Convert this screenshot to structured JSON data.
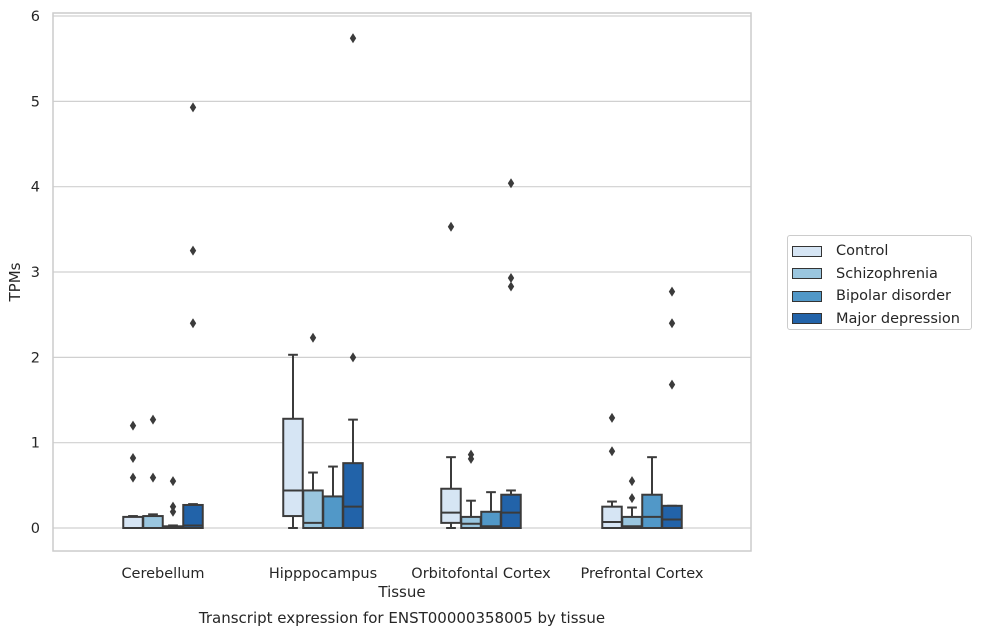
{
  "chart_data": {
    "type": "box",
    "caption": "Transcript expression for ENST00000358005 by tissue",
    "xlabel": "Tissue",
    "ylabel": "TPMs",
    "ylim": [
      -0.27,
      6.05
    ],
    "yticks": [
      0,
      1,
      2,
      3,
      4,
      5,
      6
    ],
    "categories": [
      "Cerebellum",
      "Hipppocampus",
      "Orbitofontal Cortex",
      "Prefrontal Cortex"
    ],
    "grid": "horizontal",
    "legend_position": "right",
    "series": [
      {
        "name": "Control",
        "color": "#d6e5f4",
        "boxes": [
          {
            "q1": 0.0,
            "median": 0.0,
            "q3": 0.13,
            "whisker_low": 0.0,
            "whisker_high": 0.14,
            "outliers": [
              1.2,
              0.82,
              0.59
            ]
          },
          {
            "q1": 0.14,
            "median": 0.44,
            "q3": 1.28,
            "whisker_low": 0.0,
            "whisker_high": 2.03,
            "outliers": []
          },
          {
            "q1": 0.06,
            "median": 0.18,
            "q3": 0.46,
            "whisker_low": 0.0,
            "whisker_high": 0.83,
            "outliers": [
              3.53
            ]
          },
          {
            "q1": 0.0,
            "median": 0.07,
            "q3": 0.25,
            "whisker_low": 0.0,
            "whisker_high": 0.31,
            "outliers": [
              1.29,
              0.9
            ]
          }
        ]
      },
      {
        "name": "Schizophrenia",
        "color": "#9ac6df",
        "boxes": [
          {
            "q1": 0.0,
            "median": 0.0,
            "q3": 0.14,
            "whisker_low": 0.0,
            "whisker_high": 0.16,
            "outliers": [
              1.27,
              0.59
            ]
          },
          {
            "q1": 0.0,
            "median": 0.06,
            "q3": 0.44,
            "whisker_low": 0.0,
            "whisker_high": 0.65,
            "outliers": [
              2.23
            ]
          },
          {
            "q1": 0.0,
            "median": 0.05,
            "q3": 0.13,
            "whisker_low": 0.0,
            "whisker_high": 0.32,
            "outliers": [
              0.86,
              0.81
            ]
          },
          {
            "q1": 0.0,
            "median": 0.02,
            "q3": 0.13,
            "whisker_low": 0.0,
            "whisker_high": 0.24,
            "outliers": [
              0.55,
              0.35
            ]
          }
        ]
      },
      {
        "name": "Bipolar disorder",
        "color": "#5198c8",
        "boxes": [
          {
            "q1": 0.0,
            "median": 0.0,
            "q3": 0.02,
            "whisker_low": 0.0,
            "whisker_high": 0.03,
            "outliers": [
              0.55,
              0.25,
              0.19
            ]
          },
          {
            "q1": 0.0,
            "median": 0.0,
            "q3": 0.37,
            "whisker_low": 0.0,
            "whisker_high": 0.72,
            "outliers": []
          },
          {
            "q1": 0.0,
            "median": 0.02,
            "q3": 0.19,
            "whisker_low": 0.0,
            "whisker_high": 0.42,
            "outliers": []
          },
          {
            "q1": 0.0,
            "median": 0.13,
            "q3": 0.39,
            "whisker_low": 0.0,
            "whisker_high": 0.83,
            "outliers": []
          }
        ]
      },
      {
        "name": "Major depression",
        "color": "#2263a9",
        "boxes": [
          {
            "q1": 0.0,
            "median": 0.03,
            "q3": 0.27,
            "whisker_low": 0.0,
            "whisker_high": 0.28,
            "outliers": [
              4.93,
              3.25,
              2.4
            ]
          },
          {
            "q1": 0.0,
            "median": 0.25,
            "q3": 0.76,
            "whisker_low": 0.0,
            "whisker_high": 1.27,
            "outliers": [
              5.74,
              2.0
            ]
          },
          {
            "q1": 0.0,
            "median": 0.18,
            "q3": 0.39,
            "whisker_low": 0.0,
            "whisker_high": 0.44,
            "outliers": [
              4.04,
              2.93,
              2.83
            ]
          },
          {
            "q1": 0.0,
            "median": 0.1,
            "q3": 0.26,
            "whisker_low": 0.0,
            "whisker_high": 0.26,
            "outliers": [
              2.77,
              2.4,
              1.68
            ]
          }
        ]
      }
    ]
  }
}
